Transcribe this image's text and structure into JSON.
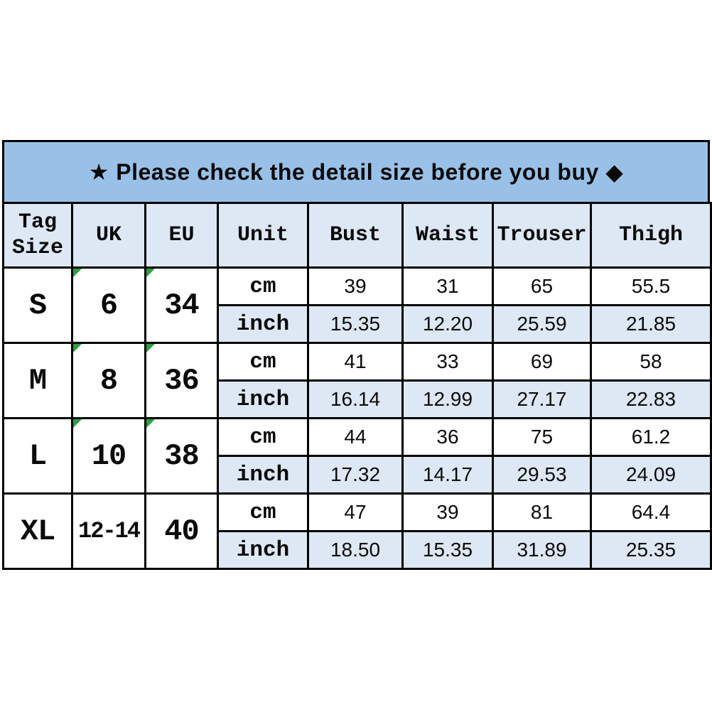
{
  "banner": {
    "text": "★ Please check the detail size before you buy ◆"
  },
  "table": {
    "headers": [
      "Tag\nSize",
      "UK",
      "EU",
      "Unit",
      "Bust",
      "Waist",
      "Trouser",
      "Thigh"
    ],
    "unit_labels": {
      "cm": "cm",
      "inch": "inch"
    },
    "rows": [
      {
        "tag": "S",
        "uk": "6",
        "eu": "34",
        "has_indicator": true,
        "cm": [
          "39",
          "31",
          "65",
          "55.5"
        ],
        "inch": [
          "15.35",
          "12.20",
          "25.59",
          "21.85"
        ]
      },
      {
        "tag": "M",
        "uk": "8",
        "eu": "36",
        "has_indicator": true,
        "cm": [
          "41",
          "33",
          "69",
          "58"
        ],
        "inch": [
          "16.14",
          "12.99",
          "27.17",
          "22.83"
        ]
      },
      {
        "tag": "L",
        "uk": "10",
        "eu": "38",
        "has_indicator": true,
        "cm": [
          "44",
          "36",
          "75",
          "61.2"
        ],
        "inch": [
          "17.32",
          "14.17",
          "29.53",
          "24.09"
        ]
      },
      {
        "tag": "XL",
        "uk": "12-14",
        "eu": "40",
        "has_indicator": false,
        "cm": [
          "47",
          "39",
          "81",
          "64.4"
        ],
        "inch": [
          "18.50",
          "15.35",
          "31.89",
          "25.35"
        ]
      }
    ]
  },
  "colors": {
    "banner_background": "#99C1E8",
    "light_blue_fill": "#DDE8F4",
    "border": "#000000",
    "indicator_green": "#2E9E3E"
  },
  "chart_data": {
    "type": "table",
    "title": "★ Please check the detail size before you buy ◆",
    "columns": [
      "Tag Size",
      "UK",
      "EU",
      "Unit",
      "Bust",
      "Waist",
      "Trouser",
      "Thigh"
    ],
    "rows": [
      [
        "S",
        "6",
        "34",
        "cm",
        39,
        31,
        65,
        55.5
      ],
      [
        "S",
        "6",
        "34",
        "inch",
        15.35,
        12.2,
        25.59,
        21.85
      ],
      [
        "M",
        "8",
        "36",
        "cm",
        41,
        33,
        69,
        58
      ],
      [
        "M",
        "8",
        "36",
        "inch",
        16.14,
        12.99,
        27.17,
        22.83
      ],
      [
        "L",
        "10",
        "38",
        "cm",
        44,
        36,
        75,
        61.2
      ],
      [
        "L",
        "10",
        "38",
        "inch",
        17.32,
        14.17,
        29.53,
        24.09
      ],
      [
        "XL",
        "12-14",
        "40",
        "cm",
        47,
        39,
        81,
        64.4
      ],
      [
        "XL",
        "12-14",
        "40",
        "inch",
        18.5,
        15.35,
        31.89,
        25.35
      ]
    ],
    "layout": {
      "banner_position": "top",
      "alt_row_shading": "inch rows light blue",
      "grid": true
    }
  }
}
